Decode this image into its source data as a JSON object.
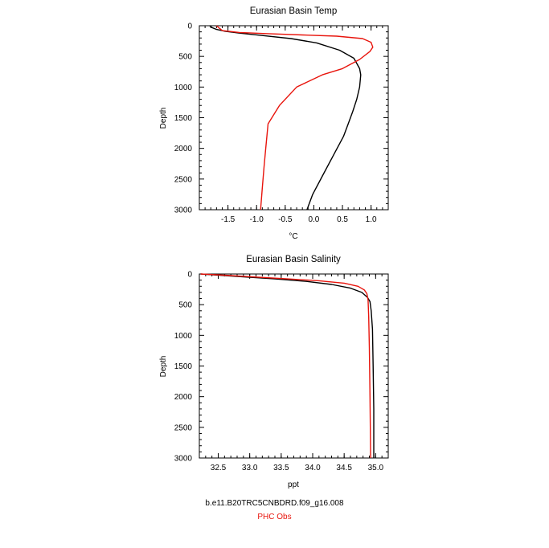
{
  "colors": {
    "model": "#000000",
    "obs": "#e8140c",
    "axis": "#000000"
  },
  "captions": {
    "model": "b.e11.B20TRC5CNBDRD.f09_g16.008",
    "obs": "PHC Obs"
  },
  "chart_data": [
    {
      "type": "line",
      "title": "Eurasian Basin Temp",
      "xlabel": "°C",
      "ylabel": "Depth",
      "xlim": [
        -2.0,
        1.3
      ],
      "ylim": [
        3000,
        0
      ],
      "y_inverted": true,
      "x_ticks": [
        -1.5,
        -1.0,
        -0.5,
        0.0,
        0.5,
        1.0
      ],
      "x_tick_labels": [
        "-1.5",
        "-1.0",
        "-0.5",
        "0.0",
        "0.5",
        "1.0"
      ],
      "y_ticks": [
        0,
        500,
        1000,
        1500,
        2000,
        2500,
        3000
      ],
      "y_tick_labels": [
        "0",
        "500",
        "1000",
        "1500",
        "2000",
        "2500",
        "3000"
      ],
      "grid": false,
      "series": [
        {
          "color_key": "model",
          "x": [
            -1.82,
            -1.78,
            -1.7,
            -1.55,
            -1.3,
            -0.9,
            -0.4,
            0.05,
            0.45,
            0.7,
            0.8,
            0.82,
            0.8,
            0.75,
            0.68,
            0.6,
            0.52,
            0.35,
            0.15,
            -0.02,
            -0.12
          ],
          "y": [
            0,
            30,
            60,
            90,
            120,
            160,
            210,
            280,
            400,
            530,
            700,
            800,
            1000,
            1200,
            1400,
            1600,
            1800,
            2100,
            2450,
            2750,
            3000
          ]
        },
        {
          "color_key": "obs",
          "x": [
            -1.7,
            -1.65,
            -1.6,
            -1.3,
            -0.8,
            -0.2,
            0.4,
            0.85,
            1.0,
            1.03,
            0.98,
            0.8,
            0.5,
            0.15,
            -0.3,
            -0.6,
            -0.8,
            -0.84,
            -0.87,
            -0.9,
            -0.93
          ],
          "y": [
            0,
            40,
            80,
            110,
            130,
            150,
            170,
            210,
            270,
            350,
            420,
            550,
            700,
            800,
            1000,
            1300,
            1600,
            2000,
            2300,
            2650,
            3000
          ]
        }
      ]
    },
    {
      "type": "line",
      "title": "Eurasian Basin Salinity",
      "xlabel": "ppt",
      "ylabel": "Depth",
      "xlim": [
        32.2,
        35.2
      ],
      "ylim": [
        3000,
        0
      ],
      "y_inverted": true,
      "x_ticks": [
        32.5,
        33.0,
        33.5,
        34.0,
        34.5,
        35.0
      ],
      "x_tick_labels": [
        "32.5",
        "33.0",
        "33.5",
        "34.0",
        "34.5",
        "35.0"
      ],
      "y_ticks": [
        0,
        500,
        1000,
        1500,
        2000,
        2500,
        3000
      ],
      "y_tick_labels": [
        "0",
        "500",
        "1000",
        "1500",
        "2000",
        "2500",
        "3000"
      ],
      "grid": false,
      "series": [
        {
          "color_key": "model",
          "x": [
            32.22,
            32.8,
            33.4,
            33.9,
            34.3,
            34.6,
            34.78,
            34.87,
            34.91,
            34.93,
            34.95,
            34.96,
            34.97,
            34.97
          ],
          "y": [
            0,
            40,
            80,
            120,
            170,
            230,
            300,
            380,
            450,
            600,
            900,
            1500,
            2200,
            3000
          ]
        },
        {
          "color_key": "obs",
          "x": [
            32.22,
            32.6,
            33.1,
            33.6,
            34.1,
            34.5,
            34.72,
            34.82,
            34.86,
            34.88,
            34.89,
            34.9,
            34.91,
            34.92
          ],
          "y": [
            0,
            20,
            50,
            80,
            110,
            150,
            200,
            260,
            320,
            420,
            700,
            1200,
            2000,
            3000
          ]
        }
      ]
    }
  ]
}
